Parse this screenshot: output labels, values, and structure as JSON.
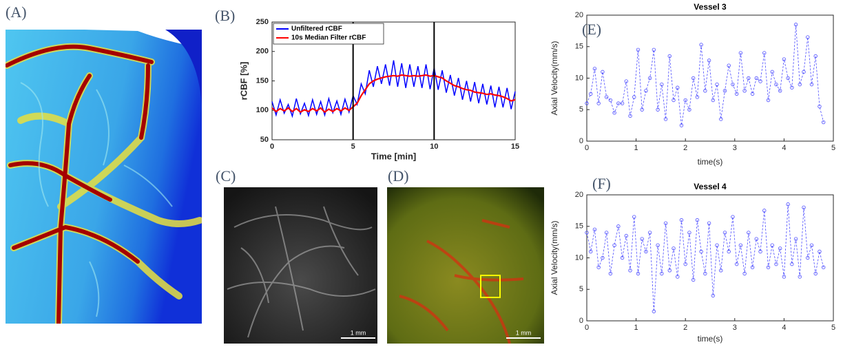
{
  "panel_labels": [
    "(A)",
    "(B)",
    "(C)",
    "(D)",
    "(E)",
    "(F)"
  ],
  "scale_bars": [
    "1 mm",
    "1 mm"
  ],
  "chart_data": [
    {
      "type": "line",
      "xlabel": "Time [min]",
      "ylabel": "rCBF [%]",
      "bold_labels": true,
      "xlim": [
        0,
        15
      ],
      "ylim": [
        50,
        250
      ],
      "xticks": [
        0,
        5,
        10,
        15
      ],
      "yticks": [
        50,
        100,
        150,
        200,
        250
      ],
      "vlines": [
        5,
        10
      ],
      "legend": "upper-left",
      "x": [
        0,
        0.25,
        0.5,
        0.75,
        1,
        1.25,
        1.5,
        1.75,
        2,
        2.25,
        2.5,
        2.75,
        3,
        3.25,
        3.5,
        3.75,
        4,
        4.25,
        4.5,
        4.75,
        5,
        5.25,
        5.5,
        5.75,
        6,
        6.25,
        6.5,
        6.75,
        7,
        7.25,
        7.5,
        7.75,
        8,
        8.25,
        8.5,
        8.75,
        9,
        9.25,
        9.5,
        9.75,
        10,
        10.25,
        10.5,
        10.75,
        11,
        11.25,
        11.5,
        11.75,
        12,
        12.25,
        12.5,
        12.75,
        13,
        13.25,
        13.5,
        13.75,
        14,
        14.25,
        14.5,
        14.75,
        15
      ],
      "series": [
        {
          "name": "Unfiltered rCBF",
          "color": "#0000ff",
          "values": [
            115,
            92,
            118,
            95,
            110,
            90,
            120,
            94,
            112,
            91,
            118,
            93,
            115,
            92,
            120,
            96,
            116,
            93,
            119,
            97,
            125,
            110,
            145,
            128,
            168,
            140,
            175,
            145,
            178,
            142,
            185,
            140,
            180,
            138,
            178,
            140,
            175,
            138,
            178,
            136,
            172,
            135,
            168,
            130,
            160,
            125,
            155,
            118,
            150,
            115,
            148,
            112,
            145,
            110,
            142,
            105,
            140,
            105,
            138,
            102,
            132
          ]
        },
        {
          "name": "10s Median Filter rCBF",
          "color": "#ff0000",
          "values": [
            104,
            98,
            103,
            99,
            104,
            98,
            103,
            97,
            101,
            98,
            103,
            99,
            104,
            97,
            102,
            98,
            103,
            99,
            104,
            100,
            106,
            112,
            125,
            135,
            145,
            150,
            153,
            155,
            157,
            158,
            159,
            158,
            160,
            159,
            158,
            159,
            158,
            159,
            160,
            158,
            159,
            157,
            155,
            150,
            146,
            142,
            140,
            137,
            135,
            134,
            131,
            130,
            129,
            127,
            128,
            126,
            125,
            123,
            120,
            116,
            118
          ]
        }
      ]
    },
    {
      "type": "line",
      "title": "Vessel 3",
      "xlabel": "time(s)",
      "ylabel": "Axial Velocity(mm/s)",
      "marker": "circle",
      "linestyle": "dashed",
      "xlim": [
        0,
        5
      ],
      "ylim": [
        0,
        20
      ],
      "xticks": [
        0,
        1,
        2,
        3,
        4,
        5
      ],
      "yticks": [
        0,
        5,
        10,
        15,
        20
      ],
      "x": [
        0,
        0.08,
        0.16,
        0.24,
        0.32,
        0.4,
        0.48,
        0.56,
        0.64,
        0.72,
        0.8,
        0.88,
        0.96,
        1.04,
        1.12,
        1.2,
        1.28,
        1.36,
        1.44,
        1.52,
        1.6,
        1.68,
        1.76,
        1.84,
        1.92,
        2,
        2.08,
        2.16,
        2.24,
        2.32,
        2.4,
        2.48,
        2.56,
        2.64,
        2.72,
        2.8,
        2.88,
        2.96,
        3.04,
        3.12,
        3.2,
        3.28,
        3.36,
        3.44,
        3.52,
        3.6,
        3.68,
        3.76,
        3.84,
        3.92,
        4,
        4.08,
        4.16,
        4.24,
        4.32,
        4.4,
        4.48,
        4.56,
        4.64,
        4.72,
        4.8
      ],
      "series": [
        {
          "color": "#4b4bff",
          "values": [
            6,
            7.5,
            11.5,
            6,
            11,
            7,
            6.5,
            4.5,
            6,
            6,
            9.5,
            4,
            7,
            14.5,
            5,
            8,
            10,
            14.5,
            5,
            9,
            3.5,
            13.5,
            6.5,
            8.5,
            2.5,
            6.5,
            5,
            10,
            7,
            15.3,
            8,
            12.8,
            6.5,
            9,
            3.5,
            8,
            12,
            9,
            7.5,
            14,
            8,
            10,
            7.5,
            10,
            9.5,
            14,
            6.5,
            11,
            9,
            8,
            13,
            10,
            8.5,
            18.5,
            9,
            11,
            16.5,
            9,
            13.5,
            5.5,
            3
          ]
        }
      ]
    },
    {
      "type": "line",
      "title": "Vessel 4",
      "xlabel": "time(s)",
      "ylabel": "Axial Velocity(mm/s)",
      "marker": "circle",
      "linestyle": "dashed",
      "xlim": [
        0,
        5
      ],
      "ylim": [
        0,
        20
      ],
      "xticks": [
        0,
        1,
        2,
        3,
        4,
        5
      ],
      "yticks": [
        0,
        5,
        10,
        15,
        20
      ],
      "x": [
        0,
        0.08,
        0.16,
        0.24,
        0.32,
        0.4,
        0.48,
        0.56,
        0.64,
        0.72,
        0.8,
        0.88,
        0.96,
        1.04,
        1.12,
        1.2,
        1.28,
        1.36,
        1.44,
        1.52,
        1.6,
        1.68,
        1.76,
        1.84,
        1.92,
        2,
        2.08,
        2.16,
        2.24,
        2.32,
        2.4,
        2.48,
        2.56,
        2.64,
        2.72,
        2.8,
        2.88,
        2.96,
        3.04,
        3.12,
        3.2,
        3.28,
        3.36,
        3.44,
        3.52,
        3.6,
        3.68,
        3.76,
        3.84,
        3.92,
        4,
        4.08,
        4.16,
        4.24,
        4.32,
        4.4,
        4.48,
        4.56,
        4.64,
        4.72,
        4.8
      ],
      "series": [
        {
          "color": "#4b4bff",
          "values": [
            14,
            11,
            14.5,
            8.5,
            10,
            14,
            7.5,
            12,
            15,
            10,
            13.5,
            8,
            16.5,
            7.5,
            13,
            11,
            14,
            1.5,
            12,
            7.5,
            15.5,
            8,
            11.5,
            7,
            16,
            9,
            14,
            6.5,
            16,
            11,
            7.5,
            15.5,
            4,
            12,
            8,
            14,
            11,
            16.5,
            9,
            12,
            7.5,
            14,
            8.5,
            13,
            11,
            17.5,
            8.5,
            12,
            9,
            11.5,
            7,
            18.5,
            9,
            13,
            7,
            18,
            10,
            12,
            7.5,
            11,
            8.5
          ]
        }
      ]
    }
  ]
}
